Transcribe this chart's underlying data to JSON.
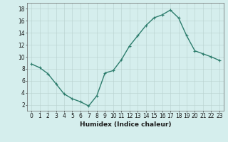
{
  "xlabel": "Humidex (Indice chaleur)",
  "x": [
    0,
    1,
    2,
    3,
    4,
    5,
    6,
    7,
    8,
    9,
    10,
    11,
    12,
    13,
    14,
    15,
    16,
    17,
    18,
    19,
    20,
    21,
    22,
    23
  ],
  "y": [
    8.8,
    8.2,
    7.2,
    5.5,
    3.8,
    3.0,
    2.5,
    1.8,
    3.5,
    7.3,
    7.7,
    9.5,
    11.8,
    13.5,
    15.2,
    16.5,
    17.0,
    17.8,
    16.5,
    13.5,
    11.0,
    10.5,
    10.0,
    9.4
  ],
  "line_color": "#2d7d6d",
  "marker": "+",
  "marker_size": 3,
  "marker_edge_width": 0.8,
  "bg_color": "#d5eeed",
  "grid_color": "#b8d0ce",
  "ylim": [
    1,
    19
  ],
  "xlim": [
    -0.5,
    23.5
  ],
  "yticks": [
    2,
    4,
    6,
    8,
    10,
    12,
    14,
    16,
    18
  ],
  "xticks": [
    0,
    1,
    2,
    3,
    4,
    5,
    6,
    7,
    8,
    9,
    10,
    11,
    12,
    13,
    14,
    15,
    16,
    17,
    18,
    19,
    20,
    21,
    22,
    23
  ],
  "tick_fontsize": 5.5,
  "xlabel_fontsize": 6.5,
  "line_width": 1.0
}
